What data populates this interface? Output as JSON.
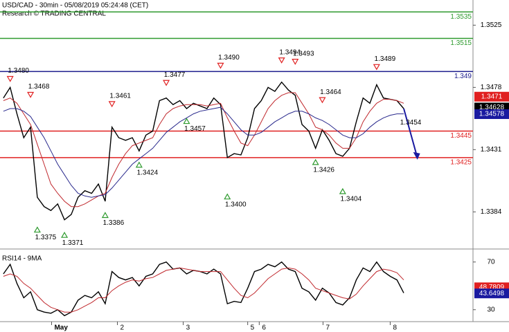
{
  "chart_data": [
    {
      "type": "line",
      "title": "USD/CAD - 30min - 05/08/2019 05:24:48 (CET)",
      "subtitle": "Research © TRADING CENTRAL",
      "x": [
        0,
        1,
        2,
        3,
        4,
        5,
        6,
        7,
        8,
        9,
        10,
        11,
        12,
        13,
        14,
        15,
        16,
        17,
        18,
        19,
        20,
        21,
        22,
        23,
        24,
        25,
        26,
        27,
        28,
        29,
        30,
        31,
        32,
        33,
        34,
        35,
        36,
        37,
        38,
        39,
        40,
        41,
        42,
        43,
        44,
        45,
        46,
        47,
        48,
        49,
        50,
        51,
        52,
        53,
        54,
        55,
        56,
        57,
        58,
        59
      ],
      "xlim": [
        -0.5,
        69.2
      ],
      "xticks": [
        {
          "value": 7.1,
          "label": "May"
        },
        {
          "value": 16.8,
          "label": "2"
        },
        {
          "value": 26.5,
          "label": "3"
        },
        {
          "value": 36,
          "label": "5"
        },
        {
          "value": 37.7,
          "label": "6"
        },
        {
          "value": 47.1,
          "label": "7"
        },
        {
          "value": 57,
          "label": "8"
        }
      ],
      "ylim": [
        1.3357,
        1.3544
      ],
      "yticks": [
        1.3525,
        1.3478,
        1.3431,
        1.3384
      ],
      "series": [
        {
          "color": "#000000",
          "values": [
            1.347,
            1.3478,
            1.3458,
            1.344,
            1.3448,
            1.3395,
            1.3388,
            1.3385,
            1.339,
            1.3378,
            1.3382,
            1.3395,
            1.34,
            1.3398,
            1.3405,
            1.3392,
            1.3448,
            1.344,
            1.3438,
            1.344,
            1.343,
            1.3442,
            1.3445,
            1.3468,
            1.347,
            1.3465,
            1.3468,
            1.3462,
            1.3466,
            1.3464,
            1.3462,
            1.347,
            1.3465,
            1.3425,
            1.3428,
            1.3427,
            1.344,
            1.3462,
            1.3468,
            1.3478,
            1.3475,
            1.3482,
            1.3476,
            1.3472,
            1.345,
            1.3445,
            1.3432,
            1.3446,
            1.3438,
            1.3428,
            1.3426,
            1.3432,
            1.3452,
            1.347,
            1.3466,
            1.348,
            1.347,
            1.3469,
            1.3468,
            1.3462
          ]
        },
        {
          "color": "#c0282d",
          "values": [
            1.3468,
            1.347,
            1.3466,
            1.3458,
            1.345,
            1.3435,
            1.342,
            1.3405,
            1.3398,
            1.3392,
            1.3388,
            1.3388,
            1.339,
            1.3393,
            1.3396,
            1.3398,
            1.341,
            1.342,
            1.3428,
            1.3434,
            1.3436,
            1.3438,
            1.344,
            1.345,
            1.3458,
            1.3462,
            1.3464,
            1.3465,
            1.3465,
            1.3465,
            1.3464,
            1.3465,
            1.3466,
            1.3455,
            1.3445,
            1.3436,
            1.3434,
            1.3442,
            1.3452,
            1.3462,
            1.3468,
            1.3472,
            1.3474,
            1.3474,
            1.3466,
            1.3458,
            1.3448,
            1.3446,
            1.3442,
            1.3436,
            1.3432,
            1.3432,
            1.344,
            1.3452,
            1.346,
            1.3466,
            1.3469,
            1.3469,
            1.3468,
            1.3466
          ]
        },
        {
          "color": "#28288c",
          "values": [
            1.346,
            1.3462,
            1.3462,
            1.346,
            1.3456,
            1.3448,
            1.344,
            1.343,
            1.342,
            1.3412,
            1.3404,
            1.3398,
            1.3396,
            1.3395,
            1.3396,
            1.3397,
            1.3402,
            1.3408,
            1.3414,
            1.342,
            1.3424,
            1.3428,
            1.3432,
            1.3438,
            1.3444,
            1.3448,
            1.3452,
            1.3455,
            1.3458,
            1.346,
            1.3461,
            1.3462,
            1.3463,
            1.3458,
            1.3452,
            1.3446,
            1.3442,
            1.3442,
            1.3444,
            1.3448,
            1.3452,
            1.3455,
            1.3458,
            1.346,
            1.346,
            1.3458,
            1.3455,
            1.3453,
            1.345,
            1.3446,
            1.3442,
            1.344,
            1.344,
            1.3443,
            1.3448,
            1.3452,
            1.3455,
            1.3457,
            1.3458,
            1.3458
          ]
        }
      ],
      "levels": [
        {
          "value": 1.3535,
          "label": "1.3535",
          "color": "#2e9a2e"
        },
        {
          "value": 1.3515,
          "label": "1.3515",
          "color": "#2e9a2e"
        },
        {
          "value": 1.349,
          "label": "1.349",
          "color": "#1a1a8c"
        },
        {
          "value": 1.3445,
          "label": "1.3445",
          "color": "#e02020"
        },
        {
          "value": 1.3425,
          "label": "1.3425",
          "color": "#e02020"
        }
      ],
      "price_boxes": [
        {
          "value": 1.3471,
          "label": "1.3471",
          "color": "#e02020"
        },
        {
          "value": 1.34628,
          "label": "1.34628",
          "color": "#000000"
        },
        {
          "value": 1.34578,
          "label": "1.34578",
          "color": "#1a1aa0"
        }
      ],
      "annotations": [
        {
          "kind": "high",
          "index": 1,
          "value": 1.348,
          "label": "1.3480"
        },
        {
          "kind": "high",
          "index": 4,
          "value": 1.3468,
          "label": "1.3468"
        },
        {
          "kind": "high",
          "index": 16,
          "value": 1.3461,
          "label": "1.3461"
        },
        {
          "kind": "high",
          "index": 24,
          "value": 1.3477,
          "label": "1.3477"
        },
        {
          "kind": "high",
          "index": 32,
          "value": 1.349,
          "label": "1.3490"
        },
        {
          "kind": "high",
          "index": 41,
          "value": 1.3494,
          "label": "1.3494"
        },
        {
          "kind": "high",
          "index": 43,
          "value": 1.3493,
          "label": "1.3493"
        },
        {
          "kind": "high",
          "index": 47,
          "value": 1.3464,
          "label": "1.3464"
        },
        {
          "kind": "high",
          "index": 55,
          "value": 1.3489,
          "label": "1.3489"
        },
        {
          "kind": "low",
          "index": 5,
          "value": 1.3375,
          "label": "1.3375"
        },
        {
          "kind": "low",
          "index": 9,
          "value": 1.3371,
          "label": "1.3371"
        },
        {
          "kind": "low",
          "index": 15,
          "value": 1.3386,
          "label": "1.3386"
        },
        {
          "kind": "low",
          "index": 20,
          "value": 1.3424,
          "label": "1.3424"
        },
        {
          "kind": "low",
          "index": 27,
          "value": 1.3457,
          "label": "1.3457"
        },
        {
          "kind": "low",
          "index": 33,
          "value": 1.34,
          "label": "1.3400"
        },
        {
          "kind": "low",
          "index": 46,
          "value": 1.3426,
          "label": "1.3426"
        },
        {
          "kind": "low",
          "index": 50,
          "value": 1.3404,
          "label": "1.3404"
        },
        {
          "kind": "target",
          "index": 61,
          "value": 1.3454,
          "label": "1.3454"
        }
      ]
    },
    {
      "type": "line",
      "title": "RSI14 - 9MA",
      "x": [
        0,
        1,
        2,
        3,
        4,
        5,
        6,
        7,
        8,
        9,
        10,
        11,
        12,
        13,
        14,
        15,
        16,
        17,
        18,
        19,
        20,
        21,
        22,
        23,
        24,
        25,
        26,
        27,
        28,
        29,
        30,
        31,
        32,
        33,
        34,
        35,
        36,
        37,
        38,
        39,
        40,
        41,
        42,
        43,
        44,
        45,
        46,
        47,
        48,
        49,
        50,
        51,
        52,
        53,
        54,
        55,
        56,
        57,
        58,
        59
      ],
      "xlim": [
        -0.5,
        69.2
      ],
      "ylim": [
        20,
        78
      ],
      "yticks": [
        70,
        30
      ],
      "series": [
        {
          "color": "#000000",
          "values": [
            60,
            68,
            52,
            40,
            45,
            30,
            28,
            27,
            30,
            25,
            28,
            38,
            42,
            40,
            45,
            35,
            62,
            57,
            55,
            57,
            50,
            58,
            60,
            68,
            70,
            64,
            65,
            60,
            63,
            62,
            60,
            64,
            60,
            35,
            37,
            36,
            48,
            62,
            64,
            68,
            66,
            70,
            64,
            62,
            48,
            45,
            38,
            48,
            44,
            36,
            34,
            40,
            55,
            65,
            62,
            70,
            62,
            58,
            55,
            44
          ]
        },
        {
          "color": "#c0282d",
          "values": [
            58,
            60,
            58,
            52,
            48,
            42,
            36,
            32,
            30,
            28,
            28,
            30,
            33,
            36,
            40,
            40,
            46,
            50,
            53,
            55,
            54,
            56,
            57,
            60,
            63,
            64,
            65,
            64,
            63,
            62,
            62,
            62,
            62,
            55,
            48,
            42,
            40,
            44,
            50,
            56,
            60,
            64,
            65,
            64,
            60,
            55,
            48,
            46,
            44,
            42,
            40,
            39,
            43,
            50,
            56,
            62,
            64,
            63,
            61,
            55
          ]
        }
      ],
      "price_boxes": [
        {
          "value": 48.7809,
          "label": "48.7809",
          "color": "#e02020"
        },
        {
          "value": 43.6498,
          "label": "43.6498",
          "color": "#1a1aa0"
        }
      ]
    }
  ]
}
